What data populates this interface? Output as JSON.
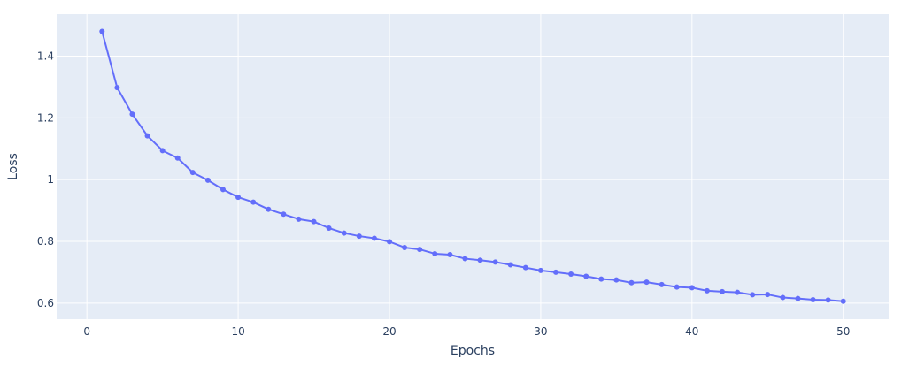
{
  "chart_data": {
    "type": "line",
    "title": "",
    "xlabel": "Epochs",
    "ylabel": "Loss",
    "xlim": [
      -2.0,
      53.0
    ],
    "ylim": [
      0.548,
      1.536
    ],
    "x_ticks": [
      0,
      10,
      20,
      30,
      40,
      50
    ],
    "y_ticks": [
      0.6,
      0.8,
      1.0,
      1.2,
      1.4
    ],
    "x_tick_labels": [
      "0",
      "10",
      "20",
      "30",
      "40",
      "50"
    ],
    "y_tick_labels": [
      "0.6",
      "0.8",
      "1",
      "1.2",
      "1.4"
    ],
    "grid": true,
    "legend": "none",
    "series": [
      {
        "name": "Loss",
        "mode": "lines+markers",
        "x": [
          1,
          2,
          3,
          4,
          5,
          6,
          7,
          8,
          9,
          10,
          11,
          12,
          13,
          14,
          15,
          16,
          17,
          18,
          19,
          20,
          21,
          22,
          23,
          24,
          25,
          26,
          27,
          28,
          29,
          30,
          31,
          32,
          33,
          34,
          35,
          36,
          37,
          38,
          39,
          40,
          41,
          42,
          43,
          44,
          45,
          46,
          47,
          48,
          49,
          50
        ],
        "values": [
          1.48,
          1.298,
          1.212,
          1.142,
          1.094,
          1.07,
          1.023,
          0.998,
          0.968,
          0.943,
          0.927,
          0.904,
          0.888,
          0.872,
          0.864,
          0.843,
          0.827,
          0.817,
          0.81,
          0.799,
          0.78,
          0.774,
          0.76,
          0.757,
          0.744,
          0.739,
          0.733,
          0.724,
          0.715,
          0.706,
          0.7,
          0.694,
          0.687,
          0.678,
          0.675,
          0.666,
          0.668,
          0.66,
          0.652,
          0.65,
          0.64,
          0.637,
          0.635,
          0.627,
          0.628,
          0.618,
          0.615,
          0.611,
          0.61,
          0.606
        ]
      }
    ]
  },
  "colors": {
    "plot_background": "#e5ecf6",
    "grid": "#ffffff",
    "line": "#636efa",
    "text": "#2a3f5f"
  }
}
